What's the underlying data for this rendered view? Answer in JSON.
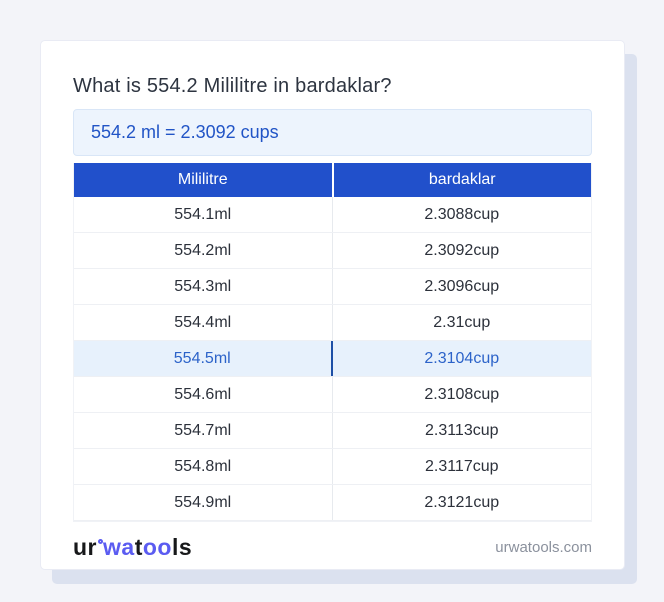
{
  "title": "What is 554.2 Mililitre in bardaklar?",
  "result": "554.2 ml = 2.3092 cups",
  "table": {
    "headers": [
      "Mililitre",
      "bardaklar"
    ],
    "rows": [
      {
        "ml": "554.1ml",
        "cup": "2.3088cup",
        "highlight": false
      },
      {
        "ml": "554.2ml",
        "cup": "2.3092cup",
        "highlight": false
      },
      {
        "ml": "554.3ml",
        "cup": "2.3096cup",
        "highlight": false
      },
      {
        "ml": "554.4ml",
        "cup": "2.31cup",
        "highlight": false
      },
      {
        "ml": "554.5ml",
        "cup": "2.3104cup",
        "highlight": true
      },
      {
        "ml": "554.6ml",
        "cup": "2.3108cup",
        "highlight": false
      },
      {
        "ml": "554.7ml",
        "cup": "2.3113cup",
        "highlight": false
      },
      {
        "ml": "554.8ml",
        "cup": "2.3117cup",
        "highlight": false
      },
      {
        "ml": "554.9ml",
        "cup": "2.3121cup",
        "highlight": false
      }
    ]
  },
  "footer": {
    "logo": {
      "part1": "ur",
      "part2": "wa",
      "part3": "t",
      "part4": "oo",
      "part5": "ls"
    },
    "site": "urwatools.com"
  },
  "colors": {
    "header_bg": "#2150cb",
    "result_text": "#2154c6",
    "result_bg": "#edf4fd",
    "highlight_bg": "#e7f1fc",
    "highlight_text": "#2c63c9",
    "logo_accent": "#5b5cf1",
    "page_bg": "#f3f4f9"
  }
}
